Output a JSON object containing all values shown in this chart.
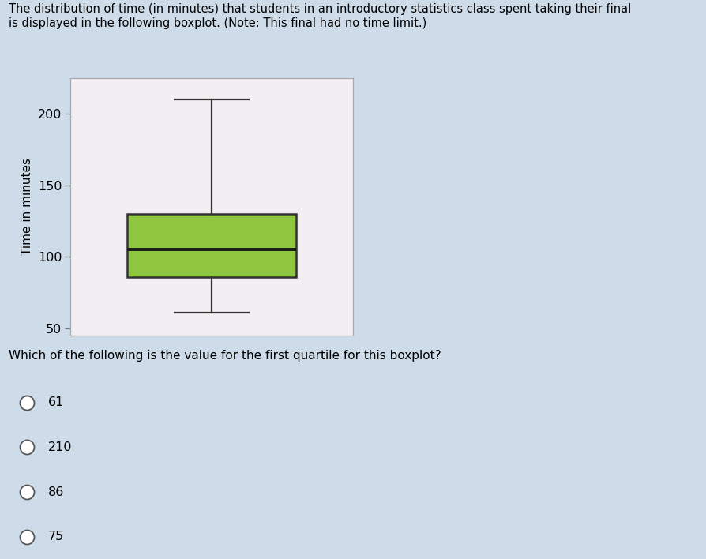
{
  "title_text": "The distribution of time (in minutes) that students in an introductory statistics class spent taking their final\nis displayed in the following boxplot. (Note: This final had no time limit.)",
  "question_text": "Which of the following is the value for the first quartile for this boxplot?",
  "choices": [
    "61",
    "210",
    "86",
    "75"
  ],
  "boxplot": {
    "min": 61,
    "q1": 86,
    "median": 105,
    "q3": 130,
    "max": 210
  },
  "ylabel": "Time in minutes",
  "ylim": [
    45,
    225
  ],
  "yticks": [
    50,
    100,
    150,
    200
  ],
  "box_facecolor": "#8ec63f",
  "box_edgecolor": "#333333",
  "whisker_color": "#333333",
  "median_color": "#1a1a1a",
  "plot_bg": "#f2eef2",
  "plot_border": "#aaaaaa",
  "overall_bg": "#cddce8",
  "answer_row_bg": "#c5d8e6",
  "answer_row_sep": "#b8cdd9",
  "title_fontsize": 10.5,
  "question_fontsize": 11,
  "choice_fontsize": 11.5,
  "ylabel_fontsize": 11
}
